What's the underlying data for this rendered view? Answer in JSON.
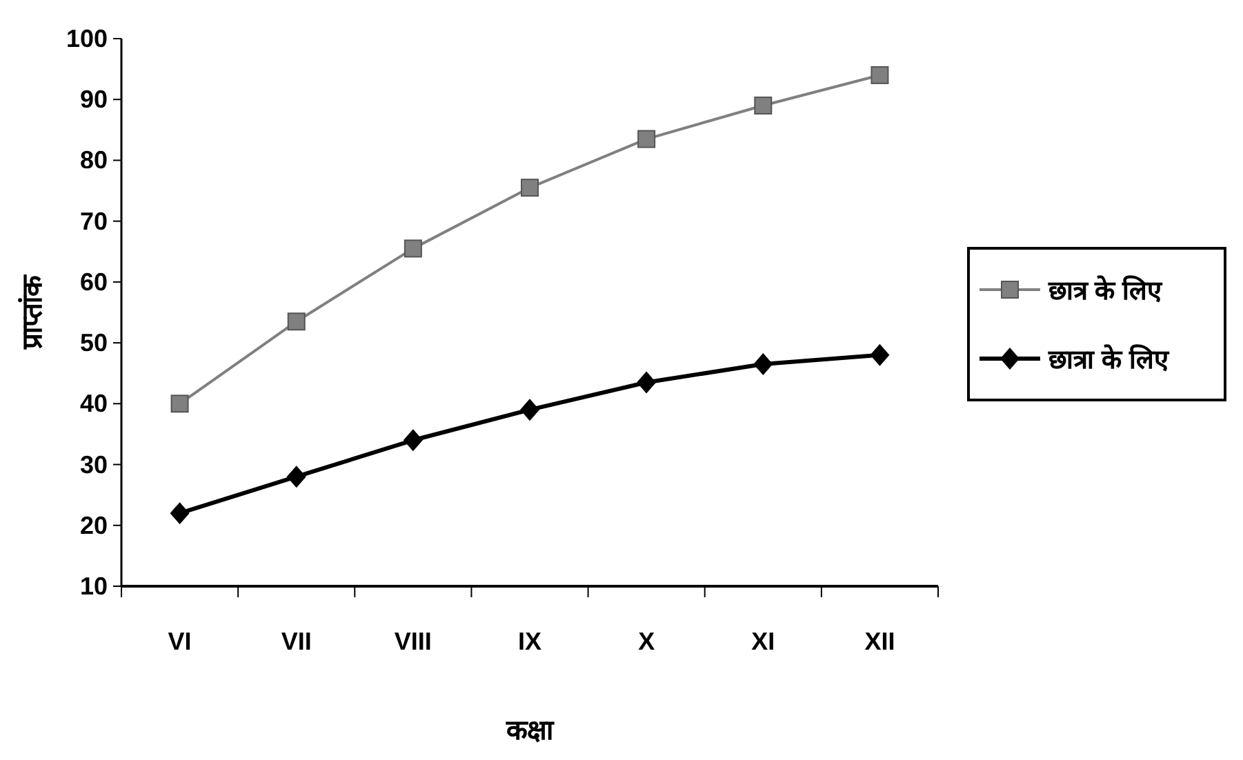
{
  "chart_data": {
    "type": "line",
    "xlabel": "कक्षा",
    "ylabel": "प्राप्तांक",
    "categories": [
      "VI",
      "VII",
      "VIII",
      "IX",
      "X",
      "XI",
      "XII"
    ],
    "series": [
      {
        "name": "छात्र के लिए",
        "color": "#808080",
        "marker": "square",
        "values": [
          40,
          53.5,
          65.5,
          75.5,
          83.5,
          89,
          94
        ]
      },
      {
        "name": "छात्रा के लिए",
        "color": "#000000",
        "marker": "diamond",
        "values": [
          22,
          28,
          34,
          39,
          43.5,
          46.5,
          48
        ]
      }
    ],
    "ylim": [
      10,
      100
    ],
    "yticks": [
      10,
      20,
      30,
      40,
      50,
      60,
      70,
      80,
      90,
      100
    ],
    "legend": "right",
    "grid": false,
    "line_style": "solid"
  }
}
